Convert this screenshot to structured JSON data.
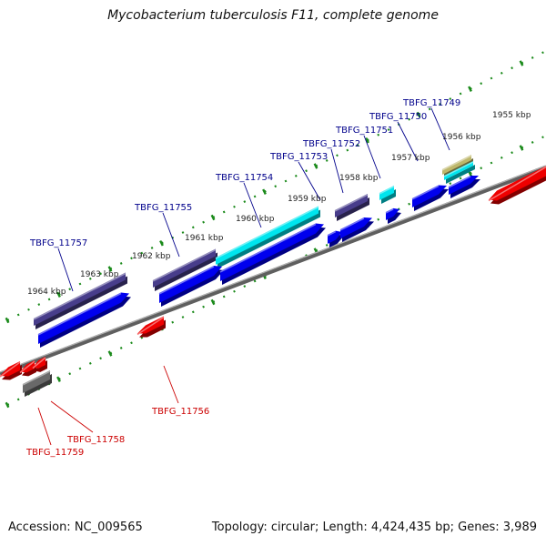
{
  "title": "Mycobacterium tuberculosis F11, complete genome",
  "footer": {
    "accession": "Accession: NC_009565",
    "summary": "Topology: circular; Length: 4,424,435 bp; Genes: 3,989"
  },
  "colors": {
    "label_forward": "#00008b",
    "label_reverse": "#cc0000",
    "tick": "#1a8a1a",
    "backbone": "#808080",
    "gene_blue": "#0000ee",
    "gene_slate": "#483d8b",
    "gene_cyan": "#00e5ee",
    "gene_red": "#ee0000",
    "gene_gray": "#696969",
    "gene_khaki": "#bdb76b"
  },
  "kbp_labels": [
    "1955 kbp",
    "1956 kbp",
    "1957 kbp",
    "1958 kbp",
    "1959 kbp",
    "1960 kbp",
    "1961 kbp",
    "1962 kbp",
    "1963 kbp",
    "1964 kbp"
  ],
  "gene_labels": {
    "forward": [
      "TBFG_11749",
      "TBFG_11750",
      "TBFG_11751",
      "TBFG_11752",
      "TBFG_11753",
      "TBFG_11754",
      "TBFG_11755",
      "TBFG_11757"
    ],
    "reverse": [
      "TBFG_11756",
      "TBFG_11758",
      "TBFG_11759"
    ]
  }
}
